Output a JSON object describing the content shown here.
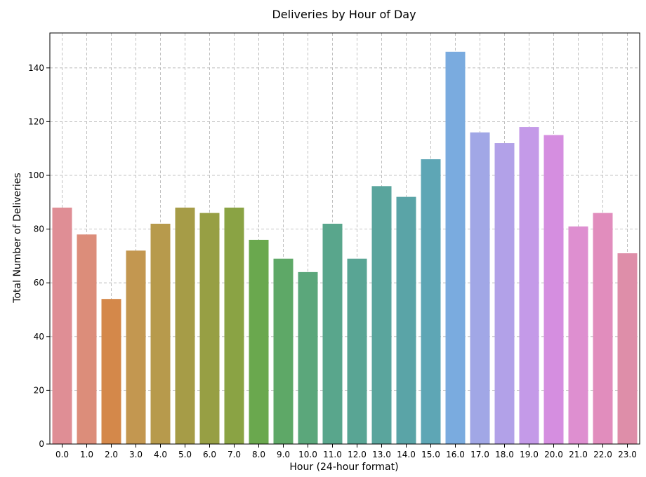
{
  "chart_data": {
    "type": "bar",
    "title": "Deliveries by Hour of Day",
    "xlabel": "Hour (24-hour format)",
    "ylabel": "Total Number of Deliveries",
    "categories": [
      "0.0",
      "1.0",
      "2.0",
      "3.0",
      "4.0",
      "5.0",
      "6.0",
      "7.0",
      "8.0",
      "9.0",
      "10.0",
      "11.0",
      "12.0",
      "13.0",
      "14.0",
      "15.0",
      "16.0",
      "17.0",
      "18.0",
      "19.0",
      "20.0",
      "21.0",
      "22.0",
      "23.0"
    ],
    "values": [
      88,
      78,
      54,
      72,
      82,
      88,
      86,
      88,
      76,
      69,
      64,
      82,
      69,
      96,
      92,
      106,
      146,
      116,
      112,
      118,
      115,
      81,
      86,
      71
    ],
    "colors": [
      "#df8e95",
      "#dc8d7a",
      "#d4884a",
      "#c39750",
      "#b79a4c",
      "#a69c47",
      "#979f44",
      "#8aa344",
      "#6aa84e",
      "#5ea867",
      "#5ba77b",
      "#59a68c",
      "#59a594",
      "#5aa59d",
      "#5aa4a7",
      "#5ea6b5",
      "#7aabdf",
      "#a1a7e6",
      "#b2a1e8",
      "#c49ae8",
      "#d58ee0",
      "#de8fd0",
      "#e18dbd",
      "#de8ea9"
    ],
    "ylim": [
      0,
      153
    ],
    "yticks": [
      0,
      20,
      40,
      60,
      80,
      100,
      120,
      140
    ],
    "grid": true
  }
}
